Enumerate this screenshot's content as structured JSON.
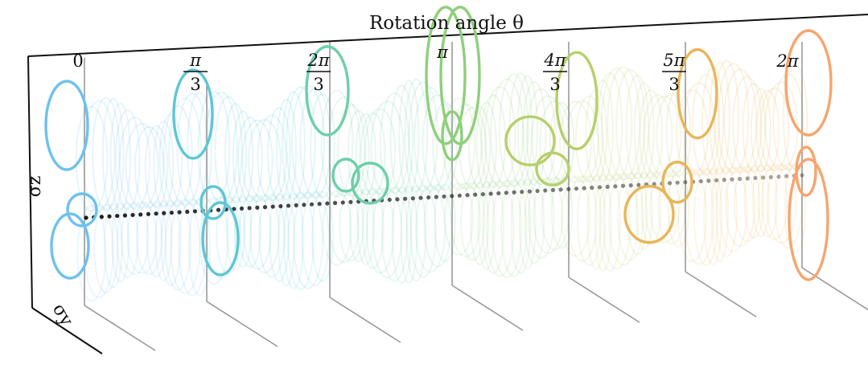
{
  "title": "Rotation angle θ",
  "axis_labels": {
    "vertical": "σz",
    "depth": "σy"
  },
  "angles": [
    {
      "num": "",
      "den": "",
      "single": "0",
      "color": "#6ec1ee"
    },
    {
      "num": "π",
      "den": "3",
      "single": "",
      "color": "#5ec6d6"
    },
    {
      "num": "2π",
      "den": "3",
      "single": "",
      "color": "#6dcfa8"
    },
    {
      "num": "",
      "den": "",
      "single": "π",
      "color": "#8fcf7c"
    },
    {
      "num": "4π",
      "den": "3",
      "single": "",
      "color": "#b7cf6b"
    },
    {
      "num": "5π",
      "den": "3",
      "single": "",
      "color": "#e8b55a"
    },
    {
      "num": "",
      "den": "",
      "single": "2π",
      "color": "#f6a56e"
    }
  ],
  "colors": {
    "axis": "#111111",
    "plane": "#999999",
    "trajectory": "#111111"
  }
}
